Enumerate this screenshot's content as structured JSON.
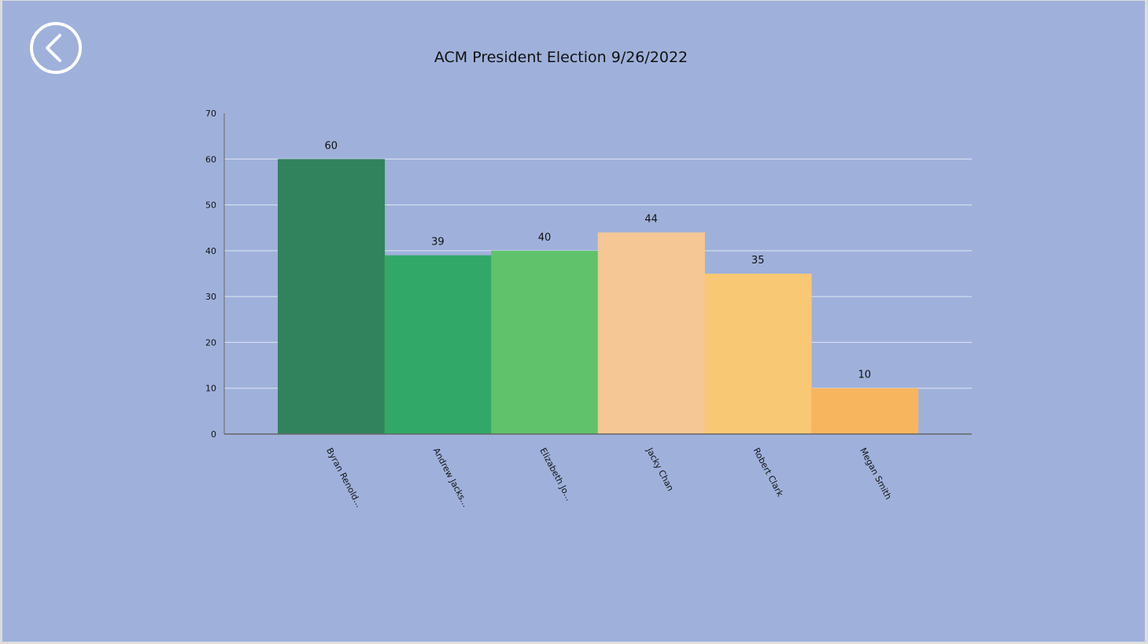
{
  "back_button": {
    "icon": "chevron-left-circle-icon"
  },
  "colors": {
    "background": "#9fb1db",
    "gridline": "#dfe5f3",
    "axis": "#666666"
  },
  "chart_data": {
    "type": "bar",
    "title": "ACM President Election 9/26/2022",
    "xlabel": "",
    "ylabel": "",
    "ylim": [
      0,
      70
    ],
    "yticks": [
      0,
      10,
      20,
      30,
      40,
      50,
      60,
      70
    ],
    "grid": true,
    "legend": "none",
    "categories": [
      "Byran Renold...",
      "Andrew Jacks...",
      "Elizabeth Jo...",
      "Jacky Chan",
      "Robert Clark",
      "Megan Smith"
    ],
    "values": [
      60,
      39,
      40,
      44,
      35,
      10
    ],
    "bar_colors": [
      "#31835d",
      "#31a867",
      "#60c36c",
      "#f4c795",
      "#f8c874",
      "#f7b55e"
    ]
  }
}
